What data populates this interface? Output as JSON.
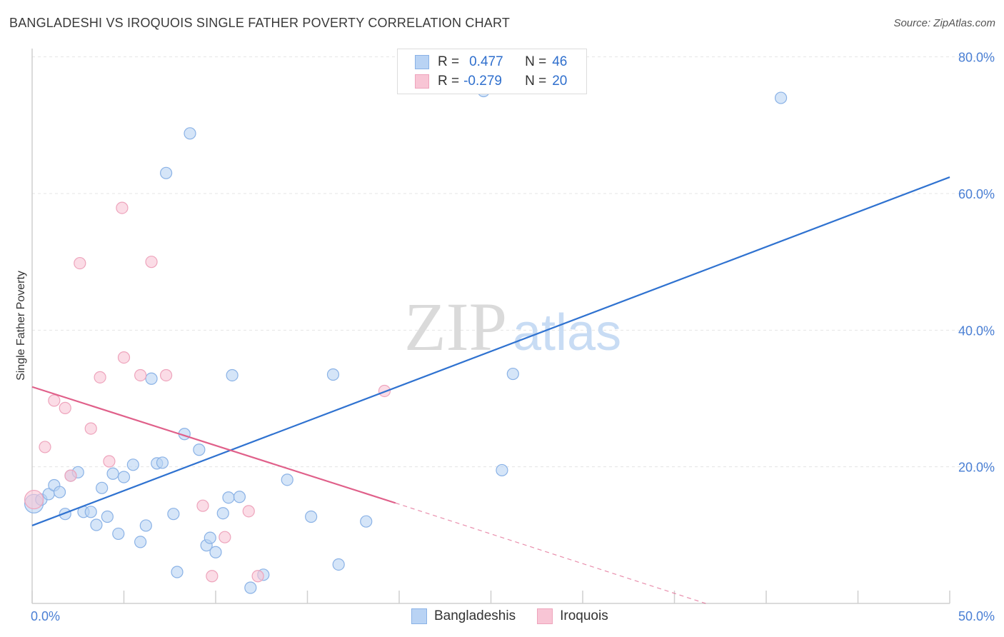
{
  "header": {
    "title": "BANGLADESHI VS IROQUOIS SINGLE FATHER POVERTY CORRELATION CHART",
    "source": "Source: ZipAtlas.com"
  },
  "watermark": {
    "zip": "ZIP",
    "atlas": "atlas"
  },
  "legend": {
    "row1": {
      "r_label": "R =",
      "r_value": "0.477",
      "n_label": "N =",
      "n_value": "46"
    },
    "row2": {
      "r_label": "R =",
      "r_value": "-0.279",
      "n_label": "N =",
      "n_value": "20"
    }
  },
  "colors": {
    "blue_fill": "#b9d3f4",
    "blue_stroke": "#8ab2e6",
    "blue_line": "#2f72d0",
    "pink_fill": "#f8c5d5",
    "pink_stroke": "#eea4bc",
    "pink_line": "#e0608a"
  },
  "chart_data": {
    "type": "scatter",
    "title": "BANGLADESHI VS IROQUOIS SINGLE FATHER POVERTY CORRELATION CHART",
    "xlabel": "",
    "ylabel": "Single Father Poverty",
    "xlim": [
      0,
      50
    ],
    "ylim": [
      0,
      80
    ],
    "x_tick_labels": [
      "0.0%",
      "50.0%"
    ],
    "y_ticks": [
      20,
      40,
      60,
      80
    ],
    "y_tick_labels": [
      "20.0%",
      "40.0%",
      "60.0%",
      "80.0%"
    ],
    "grid": true,
    "legend_position": "bottom",
    "series": [
      {
        "name": "Bangladeshis",
        "r": 0.477,
        "n": 46,
        "trend": {
          "x1": 0,
          "y1": 11.4,
          "x2": 50,
          "y2": 62.4
        },
        "points": [
          [
            0.1,
            14.6
          ],
          [
            0.5,
            15.2
          ],
          [
            0.9,
            16.0
          ],
          [
            1.2,
            17.3
          ],
          [
            1.5,
            16.3
          ],
          [
            1.8,
            13.1
          ],
          [
            2.1,
            18.7
          ],
          [
            2.5,
            19.2
          ],
          [
            2.8,
            13.4
          ],
          [
            3.2,
            13.4
          ],
          [
            3.5,
            11.5
          ],
          [
            3.8,
            16.9
          ],
          [
            4.1,
            12.7
          ],
          [
            4.4,
            19.0
          ],
          [
            4.7,
            10.2
          ],
          [
            5.0,
            18.5
          ],
          [
            5.5,
            20.3
          ],
          [
            5.9,
            9.0
          ],
          [
            6.2,
            11.4
          ],
          [
            6.5,
            32.9
          ],
          [
            6.8,
            20.5
          ],
          [
            7.1,
            20.6
          ],
          [
            7.3,
            63.0
          ],
          [
            7.7,
            13.1
          ],
          [
            7.9,
            4.6
          ],
          [
            8.3,
            24.8
          ],
          [
            8.6,
            68.8
          ],
          [
            9.1,
            22.5
          ],
          [
            9.5,
            8.5
          ],
          [
            9.7,
            9.6
          ],
          [
            10.0,
            7.5
          ],
          [
            10.4,
            13.2
          ],
          [
            10.7,
            15.5
          ],
          [
            10.9,
            33.4
          ],
          [
            11.3,
            15.6
          ],
          [
            11.9,
            2.3
          ],
          [
            12.6,
            4.2
          ],
          [
            13.9,
            18.1
          ],
          [
            15.2,
            12.7
          ],
          [
            16.4,
            33.5
          ],
          [
            16.7,
            5.7
          ],
          [
            18.2,
            12.0
          ],
          [
            24.6,
            75.0
          ],
          [
            25.6,
            19.5
          ],
          [
            26.2,
            33.6
          ],
          [
            40.8,
            74.0
          ]
        ]
      },
      {
        "name": "Iroquois",
        "r": -0.279,
        "n": 20,
        "trend": {
          "x1": 0,
          "y1": 31.7,
          "x2": 19.8,
          "y2": 14.7,
          "dash_to_x": 36.7,
          "dash_to_y": 0
        },
        "points": [
          [
            0.1,
            15.2
          ],
          [
            0.7,
            22.9
          ],
          [
            1.2,
            29.7
          ],
          [
            1.8,
            28.6
          ],
          [
            2.1,
            18.7
          ],
          [
            2.6,
            49.8
          ],
          [
            3.2,
            25.6
          ],
          [
            3.7,
            33.1
          ],
          [
            4.2,
            20.8
          ],
          [
            4.9,
            57.9
          ],
          [
            5.0,
            36.0
          ],
          [
            5.9,
            33.4
          ],
          [
            6.5,
            50.0
          ],
          [
            7.3,
            33.4
          ],
          [
            9.3,
            14.3
          ],
          [
            9.8,
            4.0
          ],
          [
            10.5,
            9.7
          ],
          [
            11.8,
            13.5
          ],
          [
            12.3,
            4.0
          ],
          [
            19.2,
            31.1
          ]
        ]
      }
    ]
  }
}
